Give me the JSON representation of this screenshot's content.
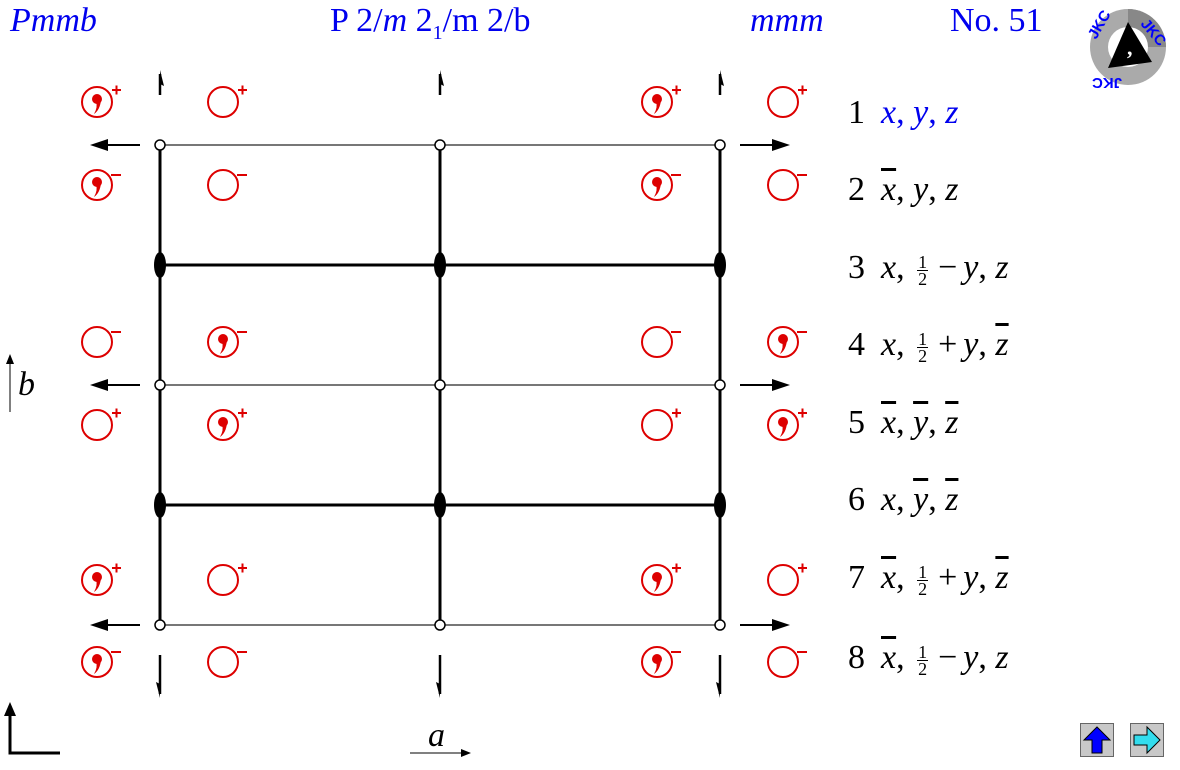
{
  "header": {
    "short_symbol": "Pmmb",
    "full_symbol": {
      "p": "P 2/",
      "m1": "m",
      " s": "2",
      "sub": "1",
      "rest": "/m 2/b"
    },
    "point_group": "mmm",
    "number": "No. 51"
  },
  "logo": {
    "text": "JKC"
  },
  "axes": {
    "b": "b",
    "a": "a"
  },
  "positions": [
    {
      "n": "1",
      "coords": [
        {
          "v": "x"
        },
        {
          "v": "y"
        },
        {
          "v": "z"
        }
      ],
      "highlight": true
    },
    {
      "n": "2",
      "coords": [
        {
          "v": "x",
          "bar": true
        },
        {
          "v": "y"
        },
        {
          "v": "z"
        }
      ]
    },
    {
      "n": "3",
      "coords": [
        {
          "v": "x"
        },
        {
          "frac": [
            "1",
            "2"
          ],
          "op": "−",
          "v": "y"
        },
        {
          "v": "z"
        }
      ]
    },
    {
      "n": "4",
      "coords": [
        {
          "v": "x"
        },
        {
          "frac": [
            "1",
            "2"
          ],
          "op": "+",
          "v": "y"
        },
        {
          "v": "z",
          "bar": true
        }
      ]
    },
    {
      "n": "5",
      "coords": [
        {
          "v": "x",
          "bar": true
        },
        {
          "v": "y",
          "bar": true
        },
        {
          "v": "z",
          "bar": true
        }
      ]
    },
    {
      "n": "6",
      "coords": [
        {
          "v": "x"
        },
        {
          "v": "y",
          "bar": true
        },
        {
          "v": "z",
          "bar": true
        }
      ]
    },
    {
      "n": "7",
      "coords": [
        {
          "v": "x",
          "bar": true
        },
        {
          "frac": [
            "1",
            "2"
          ],
          "op": "+",
          "v": "y"
        },
        {
          "v": "z",
          "bar": true
        }
      ]
    },
    {
      "n": "8",
      "coords": [
        {
          "v": "x",
          "bar": true
        },
        {
          "frac": [
            "1",
            "2"
          ],
          "op": "−",
          "v": "y"
        },
        {
          "v": "z"
        }
      ]
    }
  ],
  "symbol_rows": [
    [
      "comma+",
      "circle+",
      "comma+",
      "circle+"
    ],
    [
      "comma-",
      "circle-",
      "comma-",
      "circle-"
    ],
    [
      "circle-",
      "comma-",
      "circle-",
      "comma-"
    ],
    [
      "circle+",
      "comma+",
      "circle+",
      "comma+"
    ],
    [
      "comma+",
      "circle+",
      "comma+",
      "circle+"
    ],
    [
      "comma-",
      "circle-",
      "comma-",
      "circle-"
    ]
  ],
  "colors": {
    "title": "#0000ee",
    "symbol": "#dd0000",
    "up_button": "#0000ff",
    "next_button": "#33ddee"
  },
  "nav": {
    "up_icon": "arrow-up-icon",
    "next_icon": "arrow-right-icon"
  }
}
